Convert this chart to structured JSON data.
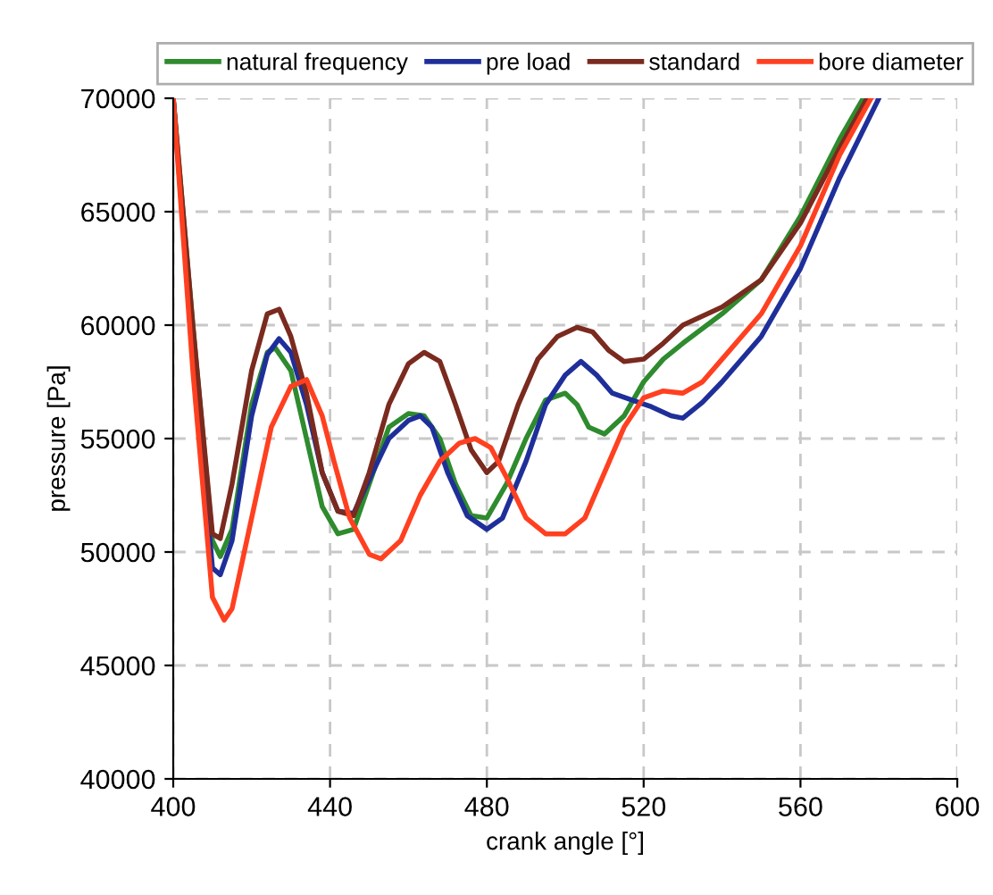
{
  "chart_data": {
    "type": "line",
    "xlabel": "crank angle [°]",
    "ylabel": "pressure [Pa]",
    "xlim": [
      400,
      600
    ],
    "xticks": [
      400,
      440,
      480,
      520,
      560,
      600
    ],
    "ylim": [
      40000,
      70000
    ],
    "yticks": [
      40000,
      45000,
      50000,
      55000,
      60000,
      65000,
      70000
    ],
    "grid": true,
    "legend": "top",
    "marker": "none",
    "line_style": "solid",
    "series": [
      {
        "name": "natural frequency",
        "color": "#2e8b2e",
        "x": [
          400,
          405,
          410,
          412,
          415,
          420,
          424,
          426,
          430,
          434,
          438,
          442,
          446,
          450,
          455,
          460,
          464,
          468,
          472,
          476,
          480,
          485,
          490,
          495,
          500,
          503,
          506,
          510,
          515,
          520,
          525,
          530,
          540,
          550,
          560,
          570,
          576
        ],
        "values": [
          70000,
          60000,
          50500,
          49800,
          51000,
          56500,
          58800,
          59000,
          58000,
          55000,
          52000,
          50800,
          51000,
          53000,
          55500,
          56100,
          56000,
          55000,
          53000,
          51600,
          51500,
          53000,
          55000,
          56700,
          57000,
          56500,
          55500,
          55200,
          56000,
          57500,
          58500,
          59200,
          60500,
          62000,
          64800,
          68200,
          70000
        ]
      },
      {
        "name": "pre load",
        "color": "#1f2f9a",
        "x": [
          400,
          405,
          410,
          412,
          415,
          420,
          424,
          427,
          430,
          434,
          438,
          442,
          446,
          450,
          455,
          460,
          463,
          466,
          470,
          475,
          480,
          484,
          490,
          495,
          500,
          504,
          508,
          512,
          517,
          522,
          527,
          530,
          535,
          540,
          550,
          560,
          570,
          580
        ],
        "values": [
          70000,
          59000,
          49300,
          49000,
          50500,
          56000,
          58700,
          59400,
          58800,
          56500,
          53500,
          51800,
          51700,
          53200,
          55000,
          55800,
          56000,
          55500,
          53500,
          51600,
          51000,
          51500,
          54000,
          56500,
          57800,
          58400,
          57800,
          57000,
          56700,
          56400,
          56000,
          55900,
          56600,
          57500,
          59500,
          62500,
          66500,
          70000
        ]
      },
      {
        "name": "standard",
        "color": "#7a2a1e",
        "x": [
          400,
          405,
          410,
          412,
          415,
          420,
          424,
          427,
          430,
          434,
          438,
          442,
          446,
          450,
          455,
          460,
          464,
          468,
          472,
          476,
          480,
          483,
          488,
          493,
          498,
          503,
          507,
          511,
          515,
          520,
          525,
          530,
          540,
          550,
          560,
          570,
          577
        ],
        "values": [
          70000,
          60000,
          50800,
          50600,
          53000,
          58000,
          60500,
          60700,
          59500,
          57000,
          53500,
          51800,
          51600,
          53500,
          56500,
          58300,
          58800,
          58400,
          56500,
          54500,
          53500,
          54000,
          56500,
          58500,
          59500,
          59900,
          59700,
          58900,
          58400,
          58500,
          59200,
          60000,
          60800,
          62000,
          64500,
          67800,
          70000
        ]
      },
      {
        "name": "bore diameter",
        "color": "#ff4020",
        "x": [
          400,
          405,
          410,
          413,
          415,
          420,
          425,
          430,
          434,
          438,
          441,
          445,
          450,
          453,
          458,
          463,
          468,
          473,
          477,
          481,
          485,
          490,
          495,
          500,
          505,
          510,
          515,
          520,
          525,
          530,
          535,
          540,
          550,
          560,
          570,
          578
        ],
        "values": [
          70000,
          58000,
          48000,
          47000,
          47500,
          51500,
          55500,
          57300,
          57600,
          56000,
          54000,
          51500,
          49900,
          49700,
          50500,
          52500,
          54000,
          54800,
          55000,
          54600,
          53300,
          51500,
          50800,
          50800,
          51500,
          53500,
          55500,
          56800,
          57100,
          57000,
          57500,
          58500,
          60500,
          63500,
          67500,
          70000
        ]
      }
    ]
  }
}
